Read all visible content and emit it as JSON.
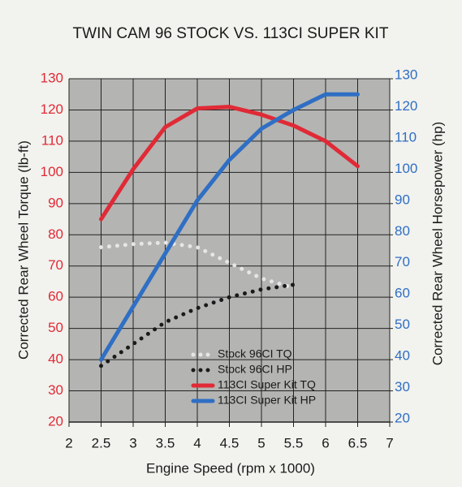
{
  "chart_data": {
    "type": "line",
    "title": "TWIN CAM 96 STOCK VS. 113CI SUPER KIT",
    "x_label": "Engine Speed (rpm x 1000)",
    "y_label": "Corrected Rear Wheel Torque (lb-ft)",
    "y2_label": "Corrected Rear Wheel Horsepower (hp)",
    "y_color": "#e02a36",
    "y2_color": "#2f6fc4",
    "xlim": [
      2,
      7
    ],
    "xticks": [
      2,
      2.5,
      3,
      3.5,
      4,
      4.5,
      5,
      5.5,
      6,
      6.5,
      7
    ],
    "ylim": [
      20,
      130
    ],
    "yticks": [
      20,
      30,
      40,
      50,
      60,
      70,
      80,
      90,
      100,
      110,
      120,
      130
    ],
    "y2lim": [
      20,
      130
    ],
    "y2ticks": [
      20,
      30,
      40,
      50,
      60,
      70,
      80,
      90,
      100,
      110,
      120,
      130
    ],
    "grid": true,
    "series": [
      {
        "name": "Stock 96CI TQ",
        "color": "#e6e6e6",
        "line_style": "dotted",
        "x": [
          2.5,
          3,
          3.5,
          4,
          4.5,
          5,
          5.5
        ],
        "values": [
          76,
          77,
          77.5,
          76,
          71,
          66,
          63
        ]
      },
      {
        "name": "Stock 96CI HP",
        "color": "#1a1a1a",
        "line_style": "dotted",
        "axis": "y2",
        "x": [
          2.5,
          3,
          3.5,
          4,
          4.5,
          5,
          5.5
        ],
        "values": [
          38,
          45,
          52,
          56.5,
          60,
          62.5,
          64
        ]
      },
      {
        "name": "113CI Super Kit TQ",
        "color": "#e02a36",
        "line_style": "solid",
        "x": [
          2.5,
          3,
          3.5,
          4,
          4.5,
          5,
          5.5,
          6,
          6.5
        ],
        "values": [
          85,
          101,
          114.5,
          120.5,
          121,
          118.5,
          115,
          110,
          102
        ]
      },
      {
        "name": "113CI Super Kit HP",
        "color": "#2f6fc4",
        "line_style": "solid",
        "axis": "y2",
        "x": [
          2.5,
          3,
          3.5,
          4,
          4.5,
          5,
          5.5,
          6,
          6.5
        ],
        "values": [
          40,
          57,
          74,
          91,
          104,
          114,
          120,
          125,
          125
        ]
      }
    ]
  }
}
